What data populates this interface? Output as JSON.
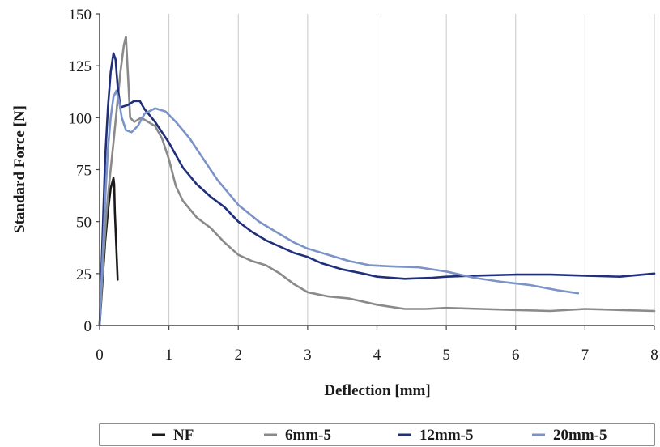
{
  "chart_data": {
    "type": "line",
    "title": "",
    "xlabel": "Deflection [mm]",
    "ylabel": "Standard Force [N]",
    "xlim": [
      0,
      8
    ],
    "ylim": [
      0,
      150
    ],
    "xticks": [
      "0",
      "1",
      "2",
      "3",
      "4",
      "5",
      "6",
      "7",
      "8"
    ],
    "yticks": [
      "0",
      "25",
      "50",
      "75",
      "100",
      "125",
      "150"
    ],
    "grid": "vertical",
    "legend_position": "bottom",
    "series": [
      {
        "name": "NF",
        "color": "#1a1a1a",
        "points": [
          [
            0,
            0
          ],
          [
            0.04,
            20
          ],
          [
            0.08,
            40
          ],
          [
            0.12,
            55
          ],
          [
            0.16,
            66
          ],
          [
            0.2,
            71
          ],
          [
            0.21,
            68
          ],
          [
            0.22,
            55
          ],
          [
            0.24,
            38
          ],
          [
            0.26,
            22
          ]
        ]
      },
      {
        "name": "6mm-5",
        "color": "#8a8a8a",
        "points": [
          [
            0,
            0
          ],
          [
            0.05,
            30
          ],
          [
            0.1,
            55
          ],
          [
            0.15,
            72
          ],
          [
            0.2,
            88
          ],
          [
            0.25,
            105
          ],
          [
            0.3,
            122
          ],
          [
            0.35,
            135
          ],
          [
            0.38,
            139
          ],
          [
            0.41,
            120
          ],
          [
            0.44,
            100
          ],
          [
            0.5,
            98
          ],
          [
            0.6,
            100
          ],
          [
            0.7,
            98
          ],
          [
            0.8,
            96
          ],
          [
            0.9,
            90
          ],
          [
            1,
            80
          ],
          [
            1.1,
            67
          ],
          [
            1.2,
            60
          ],
          [
            1.4,
            52
          ],
          [
            1.6,
            47
          ],
          [
            1.8,
            40
          ],
          [
            2,
            34
          ],
          [
            2.2,
            31
          ],
          [
            2.4,
            29
          ],
          [
            2.6,
            25
          ],
          [
            2.8,
            20
          ],
          [
            3,
            16
          ],
          [
            3.3,
            14
          ],
          [
            3.6,
            13
          ],
          [
            4,
            10
          ],
          [
            4.4,
            8
          ],
          [
            4.7,
            8
          ],
          [
            5,
            8.5
          ],
          [
            5.5,
            8
          ],
          [
            6,
            7.5
          ],
          [
            6.5,
            7
          ],
          [
            7,
            8
          ],
          [
            7.5,
            7.5
          ],
          [
            8,
            7
          ]
        ]
      },
      {
        "name": "12mm-5",
        "color": "#1f2f7a",
        "points": [
          [
            0,
            0
          ],
          [
            0.04,
            40
          ],
          [
            0.08,
            80
          ],
          [
            0.12,
            105
          ],
          [
            0.16,
            122
          ],
          [
            0.2,
            131
          ],
          [
            0.23,
            128
          ],
          [
            0.26,
            115
          ],
          [
            0.3,
            105
          ],
          [
            0.4,
            106
          ],
          [
            0.5,
            108
          ],
          [
            0.58,
            108
          ],
          [
            0.65,
            104
          ],
          [
            0.8,
            98
          ],
          [
            1,
            88
          ],
          [
            1.2,
            76
          ],
          [
            1.4,
            68
          ],
          [
            1.6,
            62
          ],
          [
            1.8,
            57
          ],
          [
            2,
            50
          ],
          [
            2.2,
            45
          ],
          [
            2.4,
            41
          ],
          [
            2.6,
            38
          ],
          [
            2.8,
            35
          ],
          [
            3,
            33
          ],
          [
            3.2,
            30
          ],
          [
            3.5,
            27
          ],
          [
            3.8,
            25
          ],
          [
            4,
            23.5
          ],
          [
            4.4,
            22.5
          ],
          [
            4.8,
            23
          ],
          [
            5,
            23.5
          ],
          [
            5.4,
            24
          ],
          [
            6,
            24.5
          ],
          [
            6.5,
            24.5
          ],
          [
            7,
            24
          ],
          [
            7.5,
            23.5
          ],
          [
            8,
            25
          ]
        ]
      },
      {
        "name": "20mm-5",
        "color": "#7b93c6",
        "points": [
          [
            0,
            0
          ],
          [
            0.04,
            30
          ],
          [
            0.08,
            60
          ],
          [
            0.12,
            85
          ],
          [
            0.16,
            100
          ],
          [
            0.2,
            110
          ],
          [
            0.24,
            113
          ],
          [
            0.28,
            108
          ],
          [
            0.32,
            100
          ],
          [
            0.38,
            94
          ],
          [
            0.46,
            93
          ],
          [
            0.55,
            96
          ],
          [
            0.65,
            102
          ],
          [
            0.8,
            104.5
          ],
          [
            0.95,
            103
          ],
          [
            1.1,
            98
          ],
          [
            1.3,
            90
          ],
          [
            1.5,
            80
          ],
          [
            1.7,
            70
          ],
          [
            2,
            58
          ],
          [
            2.3,
            50
          ],
          [
            2.6,
            44
          ],
          [
            2.8,
            40
          ],
          [
            3,
            37
          ],
          [
            3.3,
            34
          ],
          [
            3.6,
            31
          ],
          [
            3.9,
            29
          ],
          [
            4.2,
            28.5
          ],
          [
            4.6,
            28
          ],
          [
            5,
            26
          ],
          [
            5.4,
            23
          ],
          [
            5.8,
            21
          ],
          [
            6.2,
            19.5
          ],
          [
            6.6,
            17
          ],
          [
            6.9,
            15.5
          ]
        ]
      }
    ]
  }
}
